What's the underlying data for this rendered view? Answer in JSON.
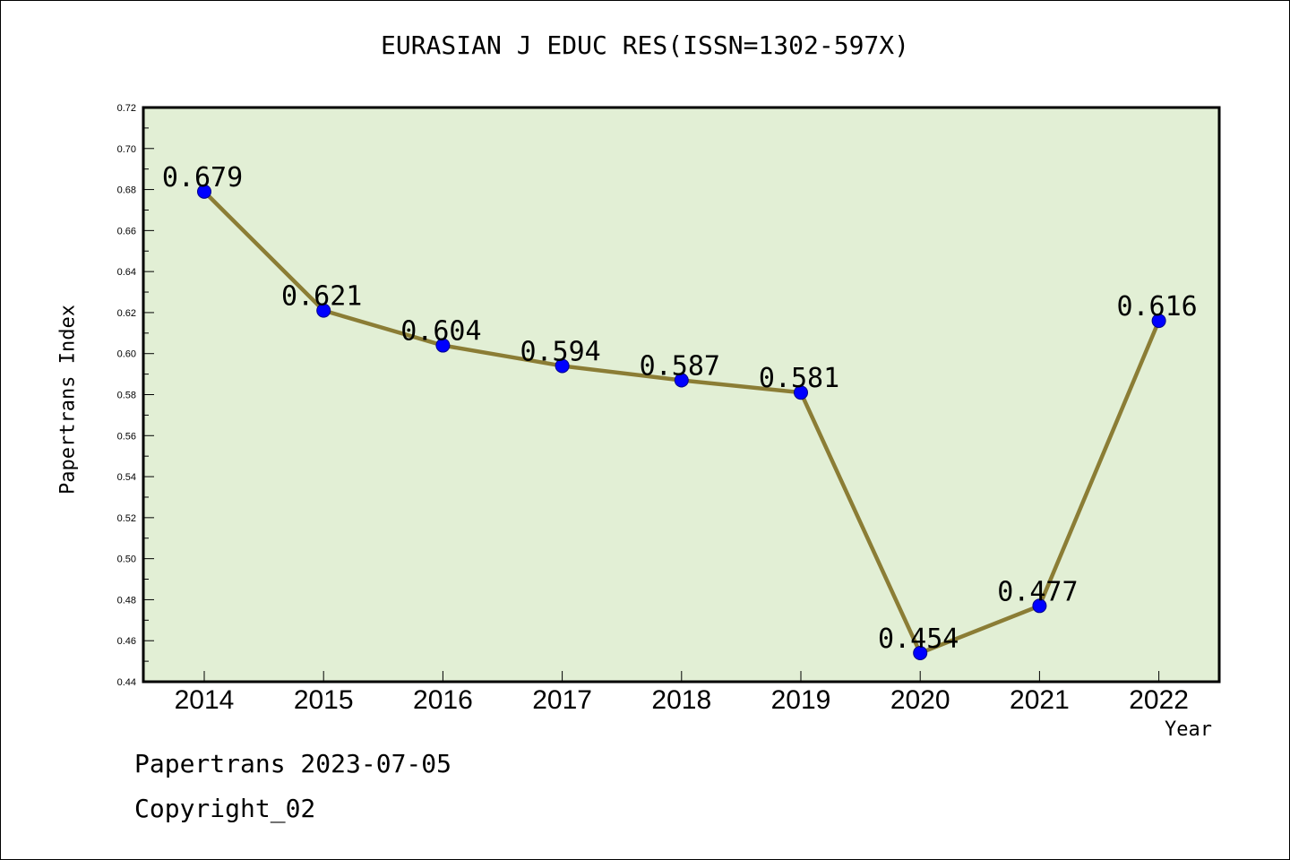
{
  "chart_data": {
    "type": "line",
    "title": "EURASIAN J EDUC RES(ISSN=1302-597X)",
    "xlabel": "Year",
    "ylabel": "Papertrans Index",
    "categories": [
      "2014",
      "2015",
      "2016",
      "2017",
      "2018",
      "2019",
      "2020",
      "2021",
      "2022"
    ],
    "series": [
      {
        "values": [
          0.679,
          0.621,
          0.604,
          0.594,
          0.587,
          0.581,
          0.454,
          0.477,
          0.616
        ]
      }
    ],
    "data_labels": [
      "0.679",
      "0.621",
      "0.604",
      "0.594",
      "0.587",
      "0.581",
      "0.454",
      "0.477",
      "0.616"
    ],
    "ylim": [
      0.44,
      0.72
    ],
    "yticks": [
      "0.44",
      "0.46",
      "0.48",
      "0.50",
      "0.52",
      "0.54",
      "0.56",
      "0.58",
      "0.60",
      "0.62",
      "0.64",
      "0.66",
      "0.68",
      "0.70",
      "0.72"
    ],
    "grid": false,
    "colors": {
      "plot_background": "#e2efd5",
      "line": "#8b7d35",
      "marker": "#0000ff"
    }
  },
  "footer": {
    "line1": "Papertrans 2023-07-05",
    "line2": "Copyright_02"
  }
}
